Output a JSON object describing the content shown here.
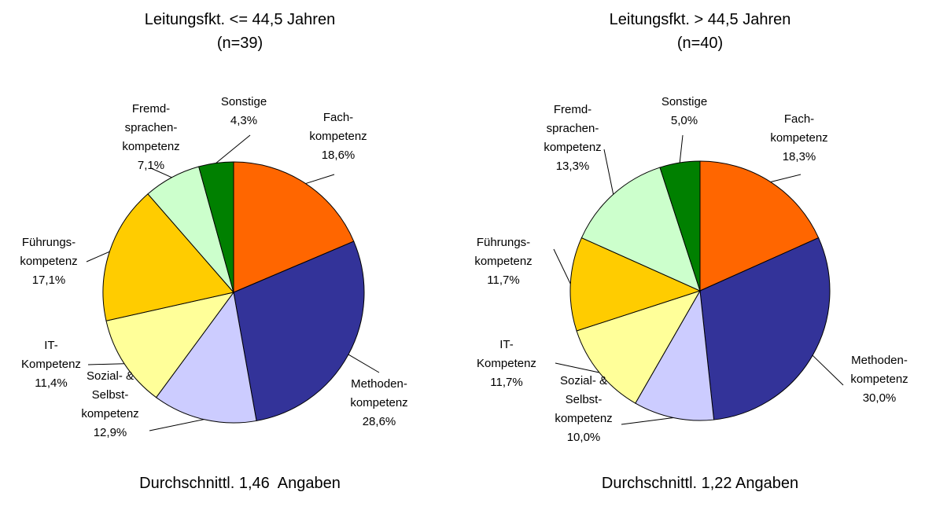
{
  "chart_data": [
    {
      "type": "pie",
      "title": "Leitungsfkt. <= 44,5 Jahren",
      "subtitle": "(n=39)",
      "categories": [
        "Fach-\nkompetenz",
        "Methoden-\nkompetenz",
        "Sozial- &\nSelbst-\nkompetenz",
        "IT-\nKompetenz",
        "Führungs-\nkompetenz",
        "Fremd-\nsprachen-\nkompetenz",
        "Sonstige"
      ],
      "values": [
        18.6,
        28.6,
        12.9,
        11.4,
        17.1,
        7.1,
        4.3
      ],
      "value_labels": [
        "18,6%",
        "28,6%",
        "12,9%",
        "11,4%",
        "17,1%",
        "7,1%",
        "4,3%"
      ],
      "colors": [
        "#ff6600",
        "#333399",
        "#ccccff",
        "#ffff99",
        "#ffcc00",
        "#ccffcc",
        "#008000"
      ],
      "footnote": "Durchschnittl. 1,46  Angaben"
    },
    {
      "type": "pie",
      "title": "Leitungsfkt. > 44,5 Jahren",
      "subtitle": "(n=40)",
      "categories": [
        "Fach-\nkompetenz",
        "Methoden-\nkompetenz",
        "Sozial- &\nSelbst-\nkompetenz",
        "IT-\nKompetenz",
        "Führungs-\nkompetenz",
        "Fremd-\nsprachen-\nkompetenz",
        "Sonstige"
      ],
      "values": [
        18.3,
        30.0,
        10.0,
        11.7,
        11.7,
        13.3,
        5.0
      ],
      "value_labels": [
        "18,3%",
        "30,0%",
        "10,0%",
        "11,7%",
        "11,7%",
        "13,3%",
        "5,0%"
      ],
      "colors": [
        "#ff6600",
        "#333399",
        "#ccccff",
        "#ffff99",
        "#ffcc00",
        "#ccffcc",
        "#008000"
      ],
      "footnote": "Durchschnittl. 1,22 Angaben"
    }
  ]
}
